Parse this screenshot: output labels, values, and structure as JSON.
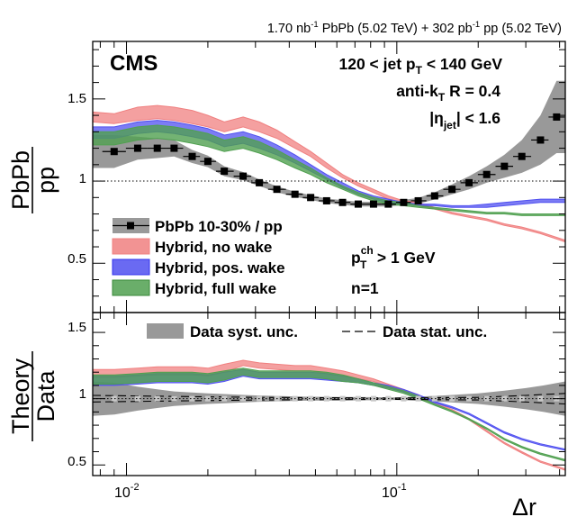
{
  "header": {
    "lumi_pbpb": "1.70 nb",
    "lumi_pbpb_sup": "-1",
    "pbpb_label": " PbPb (5.02 TeV) + 302 pb",
    "lumi_pp_sup": "-1",
    "pp_label": " pp (5.02 TeV)"
  },
  "annotations": {
    "cms": "CMS",
    "jet_pt_pre": "120 < jet p",
    "jet_pt_sub": "T",
    "jet_pt_post": " < 140 GeV",
    "algo_pre": "anti-k",
    "algo_sub": "T",
    "algo_post": " R = 0.4",
    "eta_pre": "|η",
    "eta_sub": "jet",
    "eta_post": "| < 1.6",
    "track_pt_p": "p",
    "track_pt_sup": "ch",
    "track_pt_sub": "T",
    "track_pt_post": " > 1 GeV",
    "n_label": "n=1"
  },
  "colors": {
    "no_wake": "#f08080",
    "pos_wake": "#5050f0",
    "full_wake": "#50a050",
    "data_syst": "#999999",
    "data_points": "#000000"
  },
  "chart_data": [
    {
      "type": "line",
      "panel": "top",
      "ylabel_num": "PbPb",
      "ylabel_den": "pp",
      "xscale": "log",
      "xlim": [
        0.0075,
        0.42
      ],
      "ylim": [
        0.2,
        1.85
      ],
      "yticks": [
        0.5,
        1,
        1.5
      ],
      "ytick_labels": [
        "0.5",
        "1",
        "1.5"
      ],
      "reference_line": 1,
      "legend": [
        {
          "key": "data",
          "label": "PbPb 10-30% / pp"
        },
        {
          "key": "no_wake",
          "label": "Hybrid, no wake"
        },
        {
          "key": "pos_wake",
          "label": "Hybrid, pos. wake"
        },
        {
          "key": "full_wake",
          "label": "Hybrid, full wake"
        }
      ],
      "x": [
        0.009,
        0.011,
        0.013,
        0.015,
        0.0175,
        0.02,
        0.023,
        0.027,
        0.031,
        0.036,
        0.042,
        0.048,
        0.055,
        0.063,
        0.072,
        0.082,
        0.093,
        0.106,
        0.12,
        0.138,
        0.16,
        0.185,
        0.215,
        0.25,
        0.29,
        0.34,
        0.39
      ],
      "data_values": [
        1.18,
        1.2,
        1.2,
        1.2,
        1.15,
        1.12,
        1.06,
        1.03,
        0.99,
        0.95,
        0.92,
        0.9,
        0.88,
        0.87,
        0.86,
        0.86,
        0.86,
        0.87,
        0.88,
        0.91,
        0.95,
        0.99,
        1.04,
        1.09,
        1.15,
        1.25,
        1.39
      ],
      "data_syst": [
        0.1,
        0.07,
        0.06,
        0.05,
        0.04,
        0.035,
        0.03,
        0.025,
        0.02,
        0.018,
        0.015,
        0.015,
        0.014,
        0.014,
        0.014,
        0.014,
        0.015,
        0.016,
        0.018,
        0.022,
        0.03,
        0.04,
        0.05,
        0.07,
        0.1,
        0.15,
        0.22
      ],
      "series": [
        {
          "key": "no_wake",
          "name": "Hybrid, no wake",
          "x": [
            0.0075,
            0.009,
            0.011,
            0.013,
            0.015,
            0.0175,
            0.02,
            0.023,
            0.027,
            0.031,
            0.036,
            0.042,
            0.048,
            0.055,
            0.063,
            0.072,
            0.082,
            0.093,
            0.106,
            0.12,
            0.138,
            0.16,
            0.185,
            0.215,
            0.25,
            0.29,
            0.34,
            0.42
          ],
          "lo": [
            1.36,
            1.35,
            1.37,
            1.38,
            1.37,
            1.35,
            1.33,
            1.3,
            1.33,
            1.3,
            1.26,
            1.2,
            1.15,
            1.08,
            1.02,
            0.97,
            0.93,
            0.89,
            0.86,
            0.85,
            0.83,
            0.8,
            0.78,
            0.76,
            0.73,
            0.71,
            0.68,
            0.63
          ],
          "hi": [
            1.42,
            1.41,
            1.45,
            1.46,
            1.45,
            1.43,
            1.4,
            1.36,
            1.39,
            1.36,
            1.31,
            1.24,
            1.18,
            1.11,
            1.04,
            0.99,
            0.95,
            0.91,
            0.88,
            0.87,
            0.84,
            0.81,
            0.79,
            0.77,
            0.74,
            0.72,
            0.69,
            0.64
          ]
        },
        {
          "key": "pos_wake",
          "name": "Hybrid, pos. wake",
          "x": [
            0.0075,
            0.009,
            0.011,
            0.013,
            0.015,
            0.0175,
            0.02,
            0.023,
            0.027,
            0.031,
            0.036,
            0.042,
            0.048,
            0.055,
            0.063,
            0.072,
            0.082,
            0.093,
            0.106,
            0.12,
            0.138,
            0.16,
            0.185,
            0.215,
            0.25,
            0.29,
            0.34,
            0.42
          ],
          "lo": [
            1.26,
            1.26,
            1.29,
            1.3,
            1.29,
            1.27,
            1.25,
            1.21,
            1.23,
            1.2,
            1.16,
            1.11,
            1.06,
            1.01,
            0.96,
            0.92,
            0.89,
            0.87,
            0.86,
            0.85,
            0.85,
            0.84,
            0.84,
            0.84,
            0.85,
            0.86,
            0.87,
            0.87
          ],
          "hi": [
            1.33,
            1.33,
            1.36,
            1.37,
            1.36,
            1.34,
            1.32,
            1.28,
            1.3,
            1.27,
            1.22,
            1.16,
            1.1,
            1.04,
            0.99,
            0.94,
            0.91,
            0.89,
            0.87,
            0.86,
            0.86,
            0.85,
            0.85,
            0.86,
            0.87,
            0.88,
            0.89,
            0.89
          ]
        },
        {
          "key": "full_wake",
          "name": "Hybrid, full wake",
          "x": [
            0.0075,
            0.009,
            0.011,
            0.013,
            0.015,
            0.0175,
            0.02,
            0.023,
            0.027,
            0.031,
            0.036,
            0.042,
            0.048,
            0.055,
            0.063,
            0.072,
            0.082,
            0.093,
            0.106,
            0.12,
            0.138,
            0.16,
            0.185,
            0.215,
            0.25,
            0.29,
            0.34,
            0.42
          ],
          "lo": [
            1.22,
            1.22,
            1.25,
            1.26,
            1.25,
            1.23,
            1.21,
            1.18,
            1.2,
            1.17,
            1.13,
            1.08,
            1.04,
            0.99,
            0.95,
            0.91,
            0.88,
            0.86,
            0.85,
            0.84,
            0.83,
            0.82,
            0.81,
            0.8,
            0.8,
            0.79,
            0.79,
            0.79
          ],
          "hi": [
            1.3,
            1.3,
            1.33,
            1.34,
            1.33,
            1.31,
            1.29,
            1.25,
            1.27,
            1.24,
            1.19,
            1.13,
            1.08,
            1.02,
            0.97,
            0.93,
            0.9,
            0.88,
            0.87,
            0.85,
            0.84,
            0.83,
            0.82,
            0.81,
            0.81,
            0.8,
            0.8,
            0.8
          ]
        }
      ]
    },
    {
      "type": "line",
      "panel": "bottom",
      "ylabel_num": "Theory",
      "ylabel_den": "Data",
      "xlabel": "Δr",
      "xscale": "log",
      "xlim": [
        0.0075,
        0.42
      ],
      "ylim": [
        0.42,
        1.65
      ],
      "yticks": [
        0.5,
        1,
        1.5
      ],
      "ytick_labels": [
        "0.5",
        "1",
        "1.5"
      ],
      "xtick_labels": [
        "10",
        "-2",
        "10",
        "-1"
      ],
      "reference_line": 1,
      "legend": [
        {
          "key": "data_syst",
          "label": "Data syst. unc."
        },
        {
          "key": "data_stat",
          "label": "Data stat. unc."
        }
      ],
      "syst_band": {
        "x": [
          0.0075,
          0.009,
          0.011,
          0.013,
          0.015,
          0.02,
          0.03,
          0.045,
          0.06,
          0.08,
          0.1,
          0.12,
          0.15,
          0.2,
          0.25,
          0.3,
          0.35,
          0.42
        ],
        "lo": [
          0.87,
          0.88,
          0.91,
          0.93,
          0.945,
          0.96,
          0.975,
          0.985,
          0.987,
          0.988,
          0.99,
          0.985,
          0.975,
          0.96,
          0.94,
          0.92,
          0.9,
          0.87
        ],
        "hi": [
          1.13,
          1.12,
          1.09,
          1.07,
          1.055,
          1.04,
          1.025,
          1.015,
          1.013,
          1.012,
          1.01,
          1.015,
          1.025,
          1.04,
          1.06,
          1.08,
          1.1,
          1.13
        ]
      },
      "stat_band": {
        "x": [
          0.0075,
          0.03,
          0.1,
          0.2,
          0.3,
          0.42
        ],
        "lo": [
          0.975,
          0.99,
          0.995,
          0.99,
          0.975,
          0.96
        ],
        "hi": [
          1.025,
          1.01,
          1.005,
          1.01,
          1.025,
          1.04
        ]
      },
      "series": [
        {
          "key": "no_wake",
          "name": "Hybrid, no wake",
          "x": [
            0.0075,
            0.009,
            0.011,
            0.013,
            0.015,
            0.0175,
            0.02,
            0.023,
            0.027,
            0.031,
            0.036,
            0.042,
            0.048,
            0.055,
            0.063,
            0.072,
            0.082,
            0.093,
            0.106,
            0.12,
            0.138,
            0.16,
            0.185,
            0.215,
            0.25,
            0.29,
            0.34,
            0.42
          ],
          "lo": [
            1.16,
            1.16,
            1.17,
            1.18,
            1.18,
            1.18,
            1.17,
            1.2,
            1.25,
            1.23,
            1.22,
            1.21,
            1.21,
            1.19,
            1.17,
            1.15,
            1.13,
            1.09,
            1.05,
            1.01,
            0.96,
            0.91,
            0.84,
            0.75,
            0.66,
            0.59,
            0.52,
            0.46
          ],
          "hi": [
            1.22,
            1.22,
            1.23,
            1.24,
            1.24,
            1.24,
            1.23,
            1.26,
            1.29,
            1.27,
            1.26,
            1.25,
            1.25,
            1.23,
            1.21,
            1.18,
            1.15,
            1.11,
            1.07,
            1.03,
            0.97,
            0.92,
            0.85,
            0.76,
            0.67,
            0.6,
            0.53,
            0.47
          ]
        },
        {
          "key": "pos_wake",
          "name": "Hybrid, pos. wake",
          "x": [
            0.0075,
            0.009,
            0.011,
            0.013,
            0.015,
            0.0175,
            0.02,
            0.023,
            0.027,
            0.031,
            0.036,
            0.042,
            0.048,
            0.055,
            0.063,
            0.072,
            0.082,
            0.093,
            0.106,
            0.12,
            0.138,
            0.16,
            0.185,
            0.215,
            0.25,
            0.29,
            0.34,
            0.42
          ],
          "lo": [
            1.1,
            1.1,
            1.11,
            1.12,
            1.12,
            1.12,
            1.11,
            1.13,
            1.17,
            1.15,
            1.15,
            1.15,
            1.15,
            1.14,
            1.13,
            1.12,
            1.1,
            1.08,
            1.05,
            1.01,
            0.97,
            0.93,
            0.88,
            0.81,
            0.74,
            0.69,
            0.65,
            0.61
          ],
          "hi": [
            1.17,
            1.17,
            1.18,
            1.19,
            1.19,
            1.19,
            1.18,
            1.2,
            1.22,
            1.2,
            1.2,
            1.2,
            1.2,
            1.19,
            1.17,
            1.15,
            1.12,
            1.1,
            1.07,
            1.03,
            0.98,
            0.94,
            0.89,
            0.82,
            0.75,
            0.7,
            0.66,
            0.62
          ]
        },
        {
          "key": "full_wake",
          "name": "Hybrid, full wake",
          "x": [
            0.0075,
            0.009,
            0.011,
            0.013,
            0.015,
            0.0175,
            0.02,
            0.023,
            0.027,
            0.031,
            0.036,
            0.042,
            0.048,
            0.055,
            0.063,
            0.072,
            0.082,
            0.093,
            0.106,
            0.12,
            0.138,
            0.16,
            0.185,
            0.215,
            0.25,
            0.29,
            0.34,
            0.42
          ],
          "lo": [
            1.11,
            1.11,
            1.12,
            1.13,
            1.13,
            1.13,
            1.12,
            1.14,
            1.18,
            1.16,
            1.16,
            1.16,
            1.16,
            1.15,
            1.13,
            1.12,
            1.1,
            1.07,
            1.04,
            1.0,
            0.95,
            0.9,
            0.84,
            0.77,
            0.69,
            0.63,
            0.58,
            0.53
          ],
          "hi": [
            1.18,
            1.18,
            1.19,
            1.2,
            1.2,
            1.2,
            1.19,
            1.21,
            1.23,
            1.21,
            1.21,
            1.21,
            1.21,
            1.2,
            1.18,
            1.15,
            1.12,
            1.09,
            1.06,
            1.02,
            0.96,
            0.91,
            0.85,
            0.78,
            0.7,
            0.64,
            0.59,
            0.54
          ]
        }
      ]
    }
  ]
}
